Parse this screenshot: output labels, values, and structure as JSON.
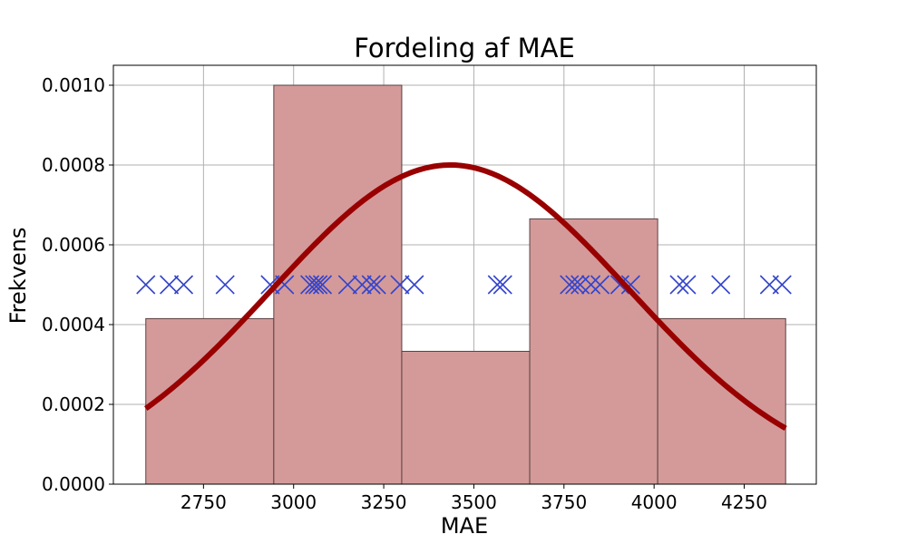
{
  "chart_data": {
    "type": "bar",
    "title": "Fordeling af MAE",
    "xlabel": "MAE",
    "ylabel": "Frekvens",
    "xlim": [
      2500,
      4450
    ],
    "ylim": [
      0,
      0.00105
    ],
    "xticks": [
      2750,
      3000,
      3250,
      3500,
      3750,
      4000,
      4250
    ],
    "xtick_labels": [
      "2750",
      "3000",
      "3250",
      "3500",
      "3750",
      "4000",
      "4250"
    ],
    "yticks": [
      0,
      0.0002,
      0.0004,
      0.0006,
      0.0008,
      0.001
    ],
    "ytick_labels": [
      "0.0000",
      "0.0002",
      "0.0004",
      "0.0006",
      "0.0008",
      "0.0010"
    ],
    "grid": true,
    "histogram": {
      "bin_edges": [
        2590,
        2945,
        3300,
        3655,
        4010,
        4365
      ],
      "values": [
        0.000415,
        0.001,
        0.000333,
        0.000665,
        0.000415
      ],
      "color": "#d49a9a",
      "edge_color": "#5a4040"
    },
    "normal_curve": {
      "mean": 3435,
      "std": 498,
      "peak": 0.0008,
      "x_range": [
        2590,
        4365
      ],
      "color": "#990000"
    },
    "samples": {
      "y": 0.0005,
      "marker": "x",
      "color": "#3344cc",
      "x": [
        2590,
        2655,
        2695,
        2810,
        2935,
        2975,
        3045,
        3058,
        3068,
        3080,
        3150,
        3190,
        3215,
        3230,
        3295,
        3335,
        3565,
        3580,
        3765,
        3780,
        3795,
        3825,
        3850,
        3905,
        3935,
        4070,
        4090,
        4185,
        4320,
        4355
      ]
    }
  }
}
